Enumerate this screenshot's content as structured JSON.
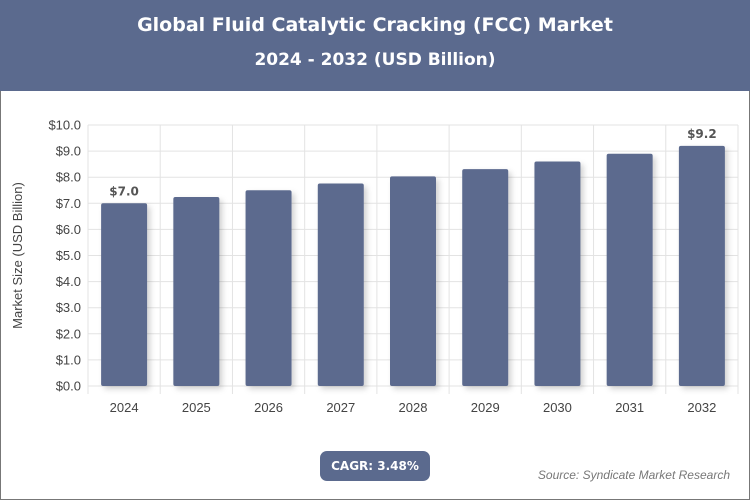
{
  "header": {
    "title": "Global Fluid Catalytic Cracking (FCC) Market",
    "subtitle": "2024 - 2032 (USD Billion)"
  },
  "chart_data": {
    "type": "bar",
    "categories": [
      "2024",
      "2025",
      "2026",
      "2027",
      "2028",
      "2029",
      "2030",
      "2031",
      "2032"
    ],
    "values": [
      7.0,
      7.24,
      7.5,
      7.76,
      8.03,
      8.31,
      8.6,
      8.9,
      9.2
    ],
    "data_labels": {
      "0": "$7.0",
      "8": "$9.2"
    },
    "ylabel": "Market Size (USD Billion)",
    "ylim": [
      0,
      10
    ],
    "yticks": [
      "$0.0",
      "$1.0",
      "$2.0",
      "$3.0",
      "$4.0",
      "$5.0",
      "$6.0",
      "$7.0",
      "$8.0",
      "$9.0",
      "$10.0"
    ],
    "grid": true,
    "bar_color": "#5b6a8e"
  },
  "footer": {
    "cagr": "CAGR: 3.48%",
    "source": "Source: Syndicate Market Research"
  }
}
